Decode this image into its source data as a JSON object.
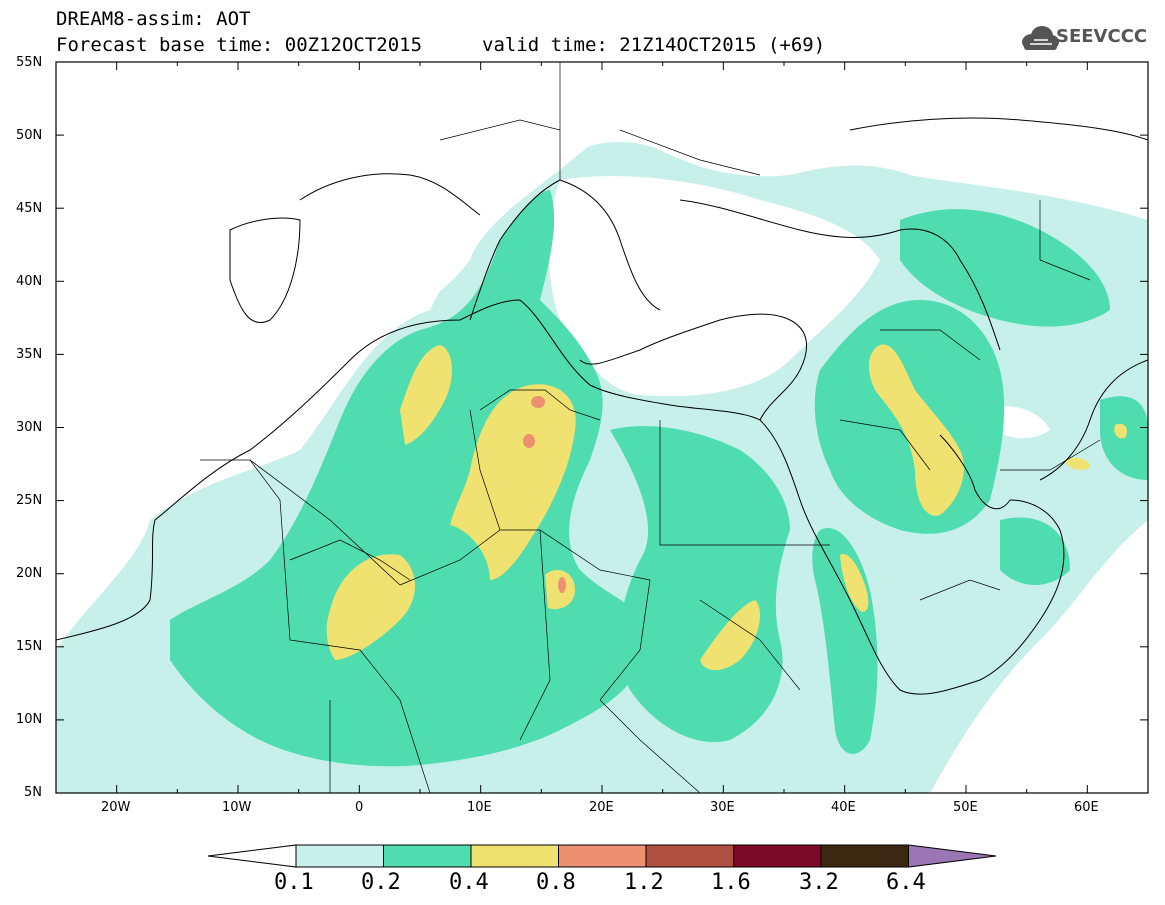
{
  "header": {
    "title_line1": "DREAM8-assim: AOT",
    "title_line2": "Forecast base time: 00Z12OCT2015",
    "valid_time": "valid time: 21Z14OCT2015 (+69)",
    "logo_text": "SEEVCCC",
    "logo_icon": "cloud-icon"
  },
  "map": {
    "projection": "lat-lon",
    "lon_range": [
      -25,
      65
    ],
    "lat_range": [
      5,
      55
    ],
    "lat_ticks": [
      "55N",
      "50N",
      "45N",
      "40N",
      "35N",
      "30N",
      "25N",
      "20N",
      "15N",
      "10N",
      "5N"
    ],
    "lon_ticks": [
      "20W",
      "10W",
      "0",
      "10E",
      "20E",
      "30E",
      "40E",
      "50E",
      "60E"
    ],
    "field": "AOT"
  },
  "colorbar": {
    "levels": [
      "0.1",
      "0.2",
      "0.4",
      "0.8",
      "1.2",
      "1.6",
      "3.2",
      "6.4"
    ],
    "colors": [
      "#ffffff",
      "#c8f0ea",
      "#4fdcae",
      "#f0e270",
      "#ec9070",
      "#b05040",
      "#7a0a28",
      "#3c2810",
      "#9a76b4"
    ]
  }
}
